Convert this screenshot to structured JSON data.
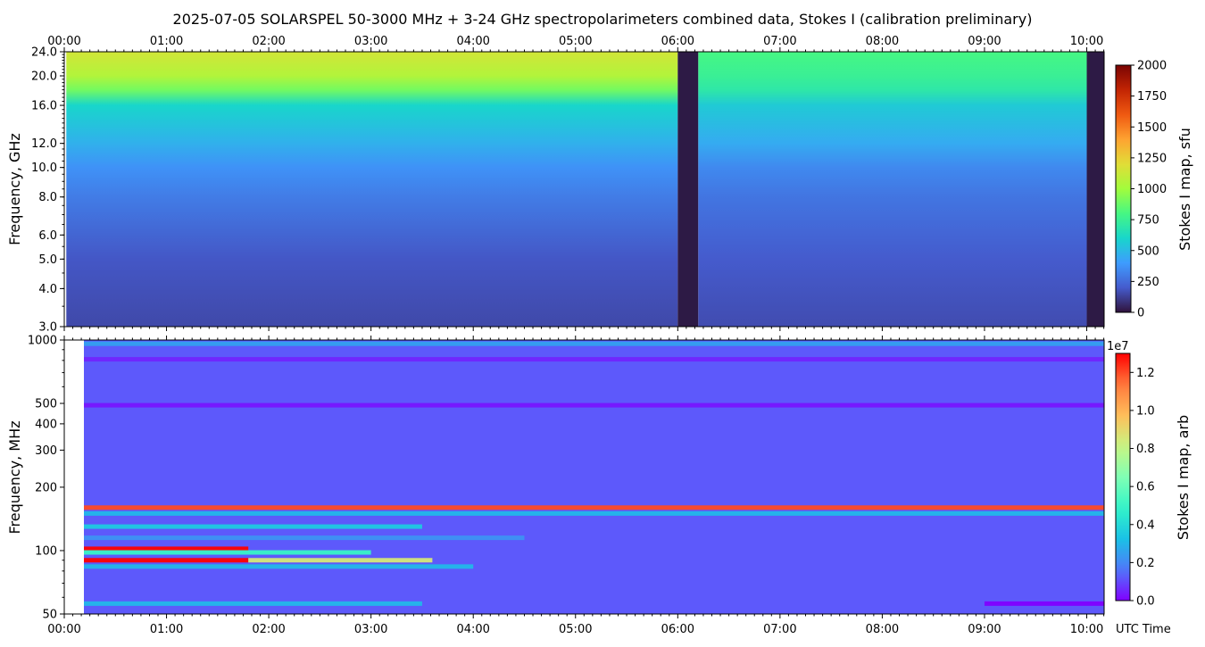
{
  "title": "2025-07-05  SOLARSPEL  50-3000 MHz  +  3-24 GHz  spectropolarimeters combined data,  Stokes I  (calibration preliminary)",
  "x_unit_label": "UTC Time",
  "chart_data": [
    {
      "type": "heatmap",
      "panel": "top",
      "ylabel": "Frequency, GHz",
      "y_scale": "log",
      "ylim": [
        3.0,
        24.0
      ],
      "y_ticks": [
        "3.0",
        "4.0",
        "5.0",
        "6.0",
        "8.0",
        "10.0",
        "12.0",
        "16.0",
        "20.0",
        "24.0"
      ],
      "y_tick_values": [
        3.0,
        4.0,
        5.0,
        6.0,
        8.0,
        10.0,
        12.0,
        16.0,
        20.0,
        24.0
      ],
      "x_ticks": [
        "00:00",
        "01:00",
        "02:00",
        "03:00",
        "04:00",
        "05:00",
        "06:00",
        "07:00",
        "08:00",
        "09:00",
        "10:00"
      ],
      "x_tick_hours": [
        0,
        1,
        2,
        3,
        4,
        5,
        6,
        7,
        8,
        9,
        10
      ],
      "xlim_hours": [
        0,
        10.17
      ],
      "data_start_hour": 0.02,
      "gaps_hours": [
        [
          6.0,
          6.2
        ],
        [
          10.0,
          10.17
        ]
      ],
      "colorbar": {
        "label": "Stokes I map, sfu",
        "range": [
          0,
          2000
        ],
        "ticks": [
          "0",
          "250",
          "500",
          "750",
          "1000",
          "1250",
          "1500",
          "1750",
          "2000"
        ],
        "tick_values": [
          0,
          250,
          500,
          750,
          1000,
          1250,
          1500,
          1750,
          2000
        ],
        "colormap": "turbo"
      },
      "spectrum_profile": [
        {
          "freq_ghz": 3.0,
          "sfu_before_gap": 150,
          "sfu_after_gap": 160
        },
        {
          "freq_ghz": 5.0,
          "sfu_before_gap": 190,
          "sfu_after_gap": 200
        },
        {
          "freq_ghz": 8.0,
          "sfu_before_gap": 300,
          "sfu_after_gap": 280
        },
        {
          "freq_ghz": 10.0,
          "sfu_before_gap": 370,
          "sfu_after_gap": 340
        },
        {
          "freq_ghz": 12.0,
          "sfu_before_gap": 470,
          "sfu_after_gap": 450
        },
        {
          "freq_ghz": 16.0,
          "sfu_before_gap": 600,
          "sfu_after_gap": 560
        },
        {
          "freq_ghz": 18.0,
          "sfu_before_gap": 900,
          "sfu_after_gap": 700
        },
        {
          "freq_ghz": 20.0,
          "sfu_before_gap": 1050,
          "sfu_after_gap": 750
        },
        {
          "freq_ghz": 24.0,
          "sfu_before_gap": 1150,
          "sfu_after_gap": 800
        }
      ]
    },
    {
      "type": "heatmap",
      "panel": "bottom",
      "ylabel": "Frequency, MHz",
      "y_scale": "log",
      "ylim": [
        50,
        1000
      ],
      "y_ticks": [
        "50",
        "100",
        "200",
        "300",
        "400",
        "500",
        "1000"
      ],
      "y_tick_values": [
        50,
        100,
        200,
        300,
        400,
        500,
        1000
      ],
      "x_ticks": [
        "00:00",
        "01:00",
        "02:00",
        "03:00",
        "04:00",
        "05:00",
        "06:00",
        "07:00",
        "08:00",
        "09:00",
        "10:00"
      ],
      "x_tick_hours": [
        0,
        1,
        2,
        3,
        4,
        5,
        6,
        7,
        8,
        9,
        10
      ],
      "xlim_hours": [
        0,
        10.17
      ],
      "data_start_hour": 0.02,
      "colorbar": {
        "label": "Stokes I map, arb",
        "offset_text": "1e7",
        "range": [
          0.0,
          1.3
        ],
        "ticks": [
          "0.0",
          "0.2",
          "0.4",
          "0.6",
          "0.8",
          "1.0",
          "1.2"
        ],
        "tick_values": [
          0.0,
          0.2,
          0.4,
          0.6,
          0.8,
          1.0,
          1.2
        ],
        "colormap": "rainbow"
      },
      "background_level": 0.12,
      "bands": [
        {
          "freq_mhz": 960,
          "t0": 0,
          "t1": 10.17,
          "level": 0.25
        },
        {
          "freq_mhz": 810,
          "t0": 0,
          "t1": 10.17,
          "level": 0.05
        },
        {
          "freq_mhz": 490,
          "t0": 0,
          "t1": 10.17,
          "level": 0.03
        },
        {
          "freq_mhz": 160,
          "t0": 0,
          "t1": 10.17,
          "level": 1.2
        },
        {
          "freq_mhz": 150,
          "t0": 0,
          "t1": 10.17,
          "level": 0.3
        },
        {
          "freq_mhz": 130,
          "t0": 0,
          "t1": 3.5,
          "level": 0.35
        },
        {
          "freq_mhz": 115,
          "t0": 0,
          "t1": 4.5,
          "level": 0.22
        },
        {
          "freq_mhz": 102,
          "t0": 0,
          "t1": 1.8,
          "level": 1.3
        },
        {
          "freq_mhz": 98,
          "t0": 0,
          "t1": 3.0,
          "level": 0.5
        },
        {
          "freq_mhz": 90,
          "t0": 0,
          "t1": 1.8,
          "level": 1.3
        },
        {
          "freq_mhz": 90,
          "t0": 1.8,
          "t1": 3.6,
          "level": 0.85
        },
        {
          "freq_mhz": 84,
          "t0": 0,
          "t1": 4.0,
          "level": 0.3
        },
        {
          "freq_mhz": 56,
          "t0": 0,
          "t1": 3.5,
          "level": 0.3
        },
        {
          "freq_mhz": 56,
          "t0": 9.0,
          "t1": 10.17,
          "level": 0.0
        }
      ]
    }
  ]
}
